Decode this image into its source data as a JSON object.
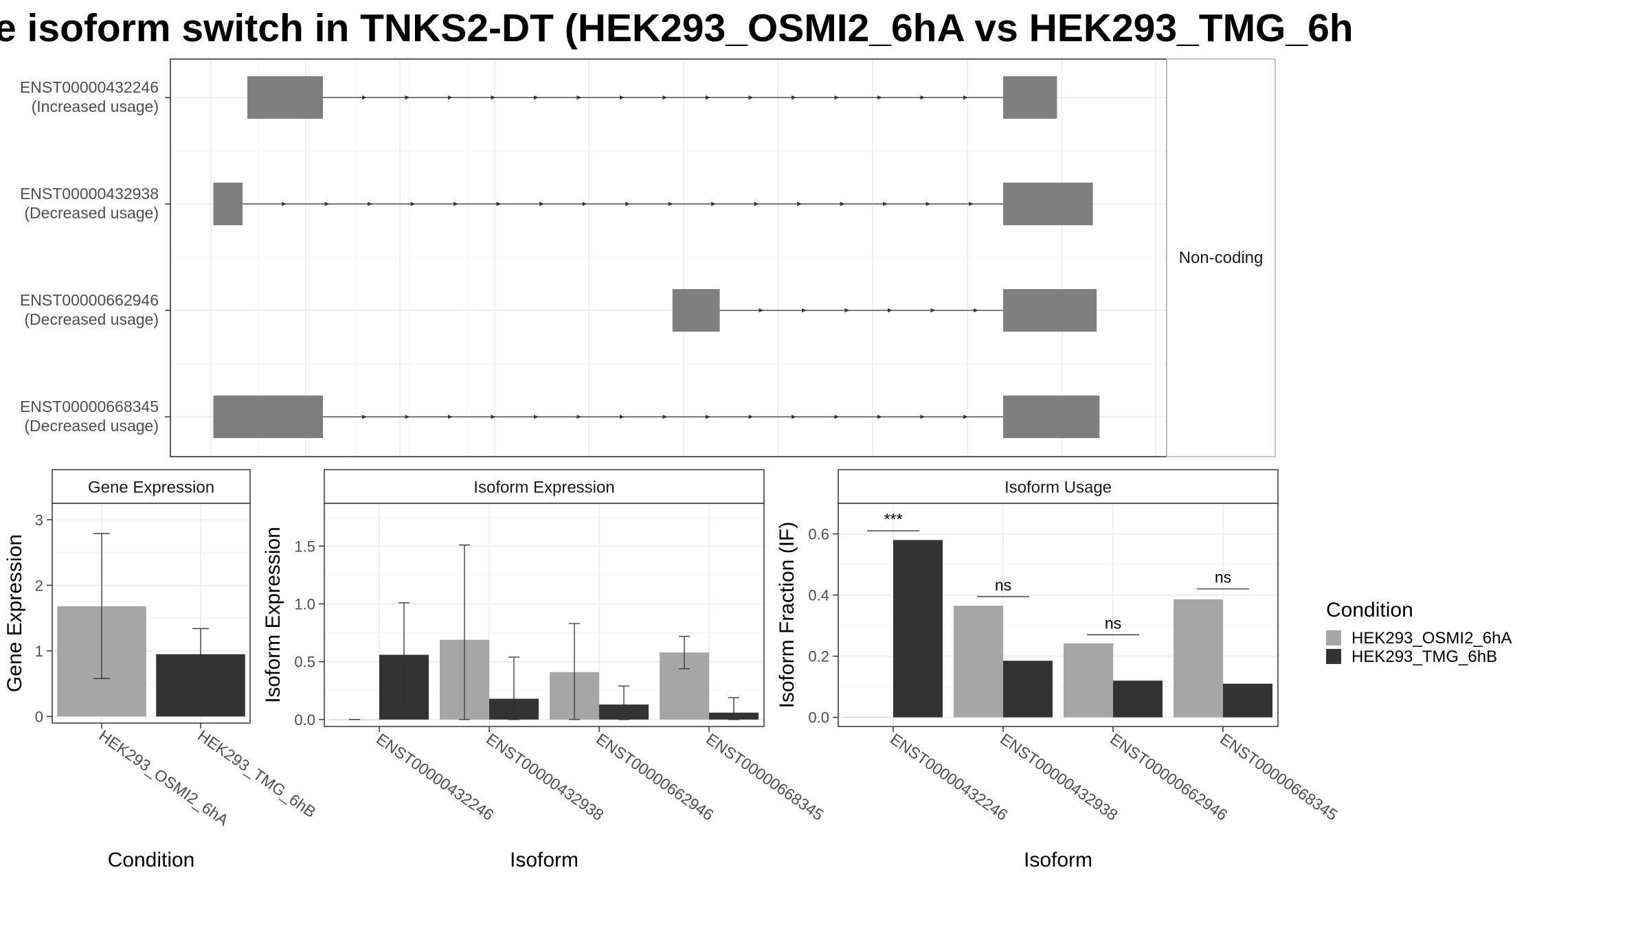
{
  "title": "e isoform switch in TNKS2-DT (HEK293_OSMI2_6hA vs HEK293_TMG_6h",
  "colors": {
    "cond_a": "#a6a6a6",
    "cond_b": "#333333",
    "exon": "#7f7f7f",
    "grid": "#ebebeb",
    "border": "#333333",
    "strip_border": "#b3b3b3"
  },
  "structure": {
    "strip_label": "Non-coding",
    "isoforms": [
      {
        "id": "ENST00000432246",
        "status": "(Increased usage)",
        "exons": [
          [
            0.04,
            0.12
          ],
          [
            0.84,
            0.897
          ]
        ]
      },
      {
        "id": "ENST00000432938",
        "status": "(Decreased usage)",
        "exons": [
          [
            0.004,
            0.035
          ],
          [
            0.84,
            0.935
          ]
        ]
      },
      {
        "id": "ENST00000662946",
        "status": "(Decreased usage)",
        "exons": [
          [
            0.49,
            0.54
          ],
          [
            0.84,
            0.939
          ]
        ]
      },
      {
        "id": "ENST00000668345",
        "status": "(Decreased usage)",
        "exons": [
          [
            0.004,
            0.12
          ],
          [
            0.84,
            0.942
          ]
        ]
      }
    ]
  },
  "chart_data": [
    {
      "type": "bar",
      "title": "Gene Expression",
      "xlabel": "Condition",
      "ylabel": "Gene Expression",
      "ylim": [
        -0.1,
        3.25
      ],
      "yticks": [
        0,
        1,
        2,
        3
      ],
      "categories": [
        "HEK293_OSMI2_6hA",
        "HEK293_TMG_6hB"
      ],
      "values": [
        1.68,
        0.95
      ],
      "errors": [
        [
          0.58,
          2.79
        ],
        [
          0.57,
          1.34
        ]
      ]
    },
    {
      "type": "bar",
      "title": "Isoform Expression",
      "xlabel": "Isoform",
      "ylabel": "Isoform Expression",
      "ylim": [
        -0.06,
        1.87
      ],
      "yticks": [
        0.0,
        0.5,
        1.0,
        1.5
      ],
      "categories": [
        "ENST00000432246",
        "ENST00000432938",
        "ENST00000662946",
        "ENST00000668345"
      ],
      "series": [
        {
          "name": "HEK293_OSMI2_6hA",
          "values": [
            0.0,
            0.69,
            0.41,
            0.58
          ],
          "errors": [
            [
              0.0,
              0.0
            ],
            [
              0.0,
              1.51
            ],
            [
              0.0,
              0.83
            ],
            [
              0.44,
              0.72
            ]
          ]
        },
        {
          "name": "HEK293_TMG_6hB",
          "values": [
            0.56,
            0.18,
            0.13,
            0.06
          ],
          "errors": [
            [
              0.11,
              1.01
            ],
            [
              0.0,
              0.54
            ],
            [
              0.0,
              0.29
            ],
            [
              0.0,
              0.19
            ]
          ]
        }
      ]
    },
    {
      "type": "bar",
      "title": "Isoform Usage",
      "xlabel": "Isoform",
      "ylabel": "Isoform Fraction (IF)",
      "ylim": [
        -0.03,
        0.7
      ],
      "yticks": [
        0.0,
        0.2,
        0.4,
        0.6
      ],
      "categories": [
        "ENST00000432246",
        "ENST00000432938",
        "ENST00000662946",
        "ENST00000668345"
      ],
      "series": [
        {
          "name": "HEK293_OSMI2_6hA",
          "values": [
            0.0,
            0.365,
            0.242,
            0.386
          ]
        },
        {
          "name": "HEK293_TMG_6hB",
          "values": [
            0.58,
            0.185,
            0.12,
            0.11
          ]
        }
      ],
      "significance": [
        {
          "label": "***",
          "y": 0.61
        },
        {
          "label": "ns",
          "y": 0.395
        },
        {
          "label": "ns",
          "y": 0.27
        },
        {
          "label": "ns",
          "y": 0.42
        }
      ]
    }
  ],
  "legend": {
    "title": "Condition",
    "items": [
      "HEK293_OSMI2_6hA",
      "HEK293_TMG_6hB"
    ]
  }
}
